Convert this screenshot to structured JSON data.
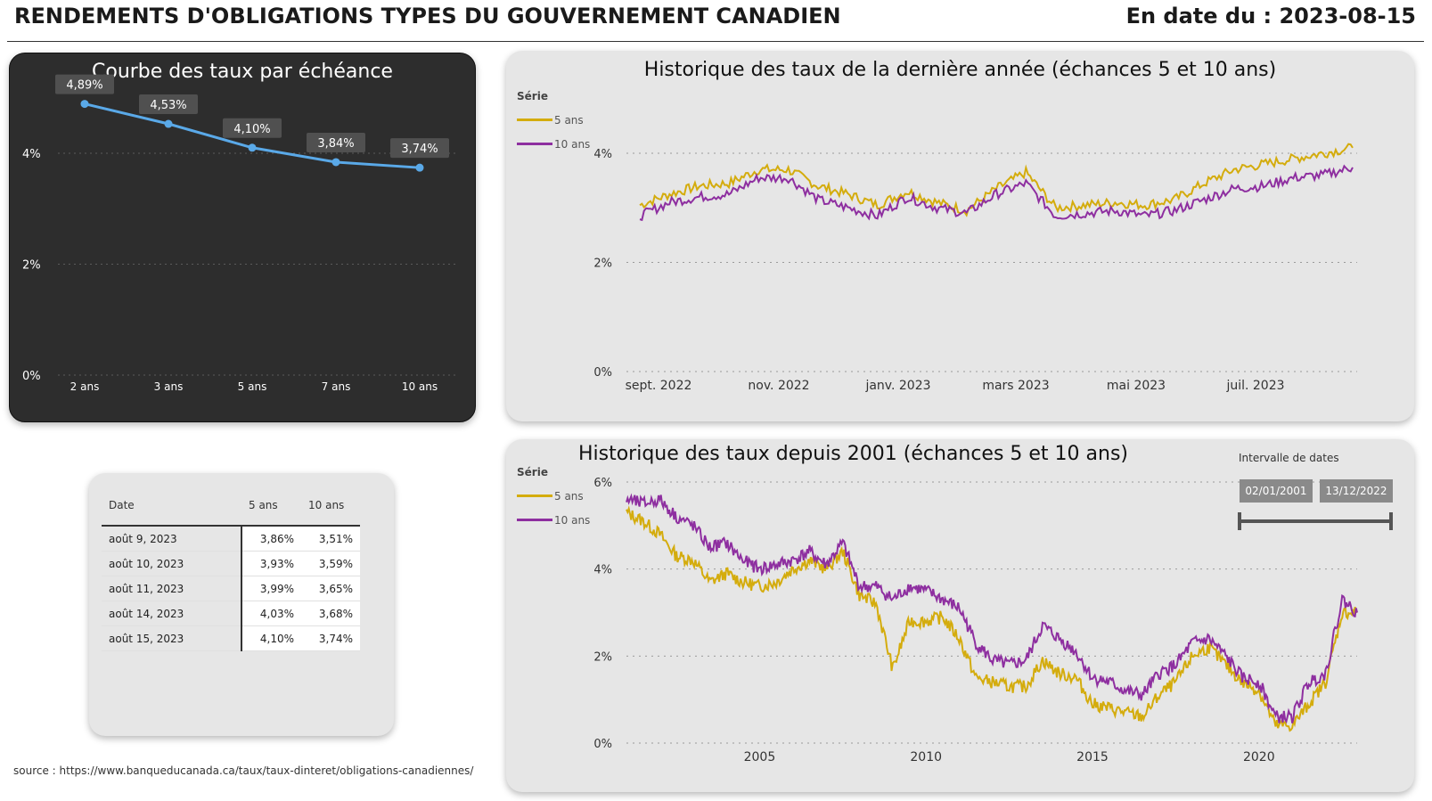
{
  "header": {
    "title": "RENDEMENTS D'OBLIGATIONS TYPES DU GOUVERNEMENT CANADIEN",
    "date": "En date du : 2023-08-15"
  },
  "colors": {
    "five": "#d4ac0d",
    "ten": "#8e2fa0",
    "curve": "#5aa9e8",
    "dark_bg": "#2d2d2d",
    "panel_bg": "#e6e6e6"
  },
  "curve_card": {
    "title": "Courbe des taux par échéance"
  },
  "hist1_card": {
    "title": "Historique des taux de la dernière année (échances 5 et 10 ans)"
  },
  "hist2_card": {
    "title": "Historique des taux depuis 2001 (échances 5 et 10 ans)"
  },
  "legend": {
    "title": "Série",
    "five": "5 ans",
    "ten": "10 ans"
  },
  "slicer": {
    "label": "Intervalle de dates",
    "start": "02/01/2001",
    "end": "13/12/2022"
  },
  "table": {
    "headers": [
      "Date",
      "5 ans",
      "10 ans"
    ],
    "rows": [
      [
        "août 9, 2023",
        "3,86%",
        "3,51%"
      ],
      [
        "août 10, 2023",
        "3,93%",
        "3,59%"
      ],
      [
        "août 11, 2023",
        "3,99%",
        "3,65%"
      ],
      [
        "août 14, 2023",
        "4,03%",
        "3,68%"
      ],
      [
        "août 15, 2023",
        "4,10%",
        "3,74%"
      ]
    ]
  },
  "source": "source : https://www.banqueducanada.ca/taux/taux-dinteret/obligations-canadiennes/",
  "chart_data": [
    {
      "type": "line",
      "title": "Courbe des taux par échéance",
      "categories": [
        "2 ans",
        "3 ans",
        "5 ans",
        "7 ans",
        "10 ans"
      ],
      "values": [
        4.89,
        4.53,
        4.1,
        3.84,
        3.74
      ],
      "value_labels": [
        "4,89%",
        "4,53%",
        "4,10%",
        "3,84%",
        "3,74%"
      ],
      "yticks": [
        "0%",
        "2%",
        "4%"
      ],
      "ylim": [
        0,
        4.89
      ],
      "grid": true
    },
    {
      "type": "line",
      "title": "Historique des taux de la dernière année (échances 5 et 10 ans)",
      "x": [
        "2022-08-15",
        "2022-09-01",
        "2022-09-15",
        "2022-10-01",
        "2022-10-15",
        "2022-11-01",
        "2022-11-15",
        "2022-12-01",
        "2022-12-15",
        "2023-01-01",
        "2023-01-15",
        "2023-02-01",
        "2023-02-15",
        "2023-03-01",
        "2023-03-15",
        "2023-04-01",
        "2023-04-15",
        "2023-05-01",
        "2023-05-15",
        "2023-06-01",
        "2023-06-15",
        "2023-07-01",
        "2023-07-15",
        "2023-08-01",
        "2023-08-15"
      ],
      "series": [
        {
          "name": "5 ans",
          "values": [
            3.05,
            3.25,
            3.4,
            3.45,
            3.7,
            3.7,
            3.4,
            3.25,
            3.05,
            3.3,
            3.1,
            2.95,
            3.35,
            3.65,
            3.0,
            3.05,
            3.1,
            3.05,
            3.15,
            3.45,
            3.7,
            3.8,
            3.9,
            4.0,
            4.1
          ]
        },
        {
          "name": "10 ans",
          "values": [
            2.85,
            3.1,
            3.2,
            3.25,
            3.55,
            3.55,
            3.15,
            3.0,
            2.85,
            3.2,
            3.0,
            2.9,
            3.25,
            3.45,
            2.85,
            2.9,
            2.95,
            2.85,
            2.95,
            3.15,
            3.35,
            3.4,
            3.55,
            3.6,
            3.74
          ]
        }
      ],
      "xticks": [
        "sept. 2022",
        "nov. 2022",
        "janv. 2023",
        "mars 2023",
        "mai 2023",
        "juil. 2023"
      ],
      "yticks": [
        "0%",
        "2%",
        "4%"
      ],
      "ylim": [
        0,
        4.1
      ],
      "grid": true,
      "legend": "top-left"
    },
    {
      "type": "line",
      "title": "Historique des taux depuis 2001 (échances 5 et 10 ans)",
      "x": [
        2001.0,
        2001.5,
        2002.0,
        2002.5,
        2003.0,
        2003.5,
        2004.0,
        2004.5,
        2005.0,
        2005.5,
        2006.0,
        2006.5,
        2007.0,
        2007.5,
        2008.0,
        2008.5,
        2009.0,
        2009.5,
        2010.0,
        2010.5,
        2011.0,
        2011.5,
        2012.0,
        2012.5,
        2013.0,
        2013.5,
        2014.0,
        2014.5,
        2015.0,
        2015.5,
        2016.0,
        2016.5,
        2017.0,
        2017.5,
        2018.0,
        2018.5,
        2019.0,
        2019.5,
        2020.0,
        2020.5,
        2021.0,
        2021.5,
        2022.0,
        2022.5,
        2022.95
      ],
      "series": [
        {
          "name": "5 ans",
          "values": [
            5.3,
            5.1,
            4.8,
            4.3,
            4.2,
            3.7,
            3.9,
            3.7,
            3.6,
            3.7,
            4.0,
            4.2,
            4.0,
            4.4,
            3.4,
            3.2,
            1.7,
            2.8,
            2.8,
            2.9,
            2.4,
            1.5,
            1.4,
            1.3,
            1.3,
            1.9,
            1.6,
            1.5,
            0.9,
            0.8,
            0.7,
            0.6,
            1.1,
            1.4,
            2.0,
            2.2,
            1.8,
            1.4,
            1.2,
            0.4,
            0.4,
            0.9,
            1.4,
            3.0,
            3.0
          ]
        },
        {
          "name": "10 ans",
          "values": [
            5.6,
            5.5,
            5.6,
            5.2,
            5.0,
            4.5,
            4.6,
            4.2,
            4.0,
            4.1,
            4.2,
            4.4,
            4.1,
            4.6,
            3.6,
            3.6,
            3.3,
            3.6,
            3.5,
            3.3,
            3.1,
            2.3,
            1.9,
            1.8,
            1.9,
            2.7,
            2.4,
            2.1,
            1.5,
            1.4,
            1.2,
            1.1,
            1.6,
            1.8,
            2.3,
            2.4,
            2.0,
            1.5,
            1.4,
            0.6,
            0.6,
            1.4,
            1.6,
            3.3,
            3.0
          ]
        }
      ],
      "xticks": [
        "2005",
        "2010",
        "2015",
        "2020"
      ],
      "yticks": [
        "0%",
        "2%",
        "4%",
        "6%"
      ],
      "ylim": [
        0,
        6
      ],
      "grid": true,
      "legend": "top-left"
    }
  ]
}
